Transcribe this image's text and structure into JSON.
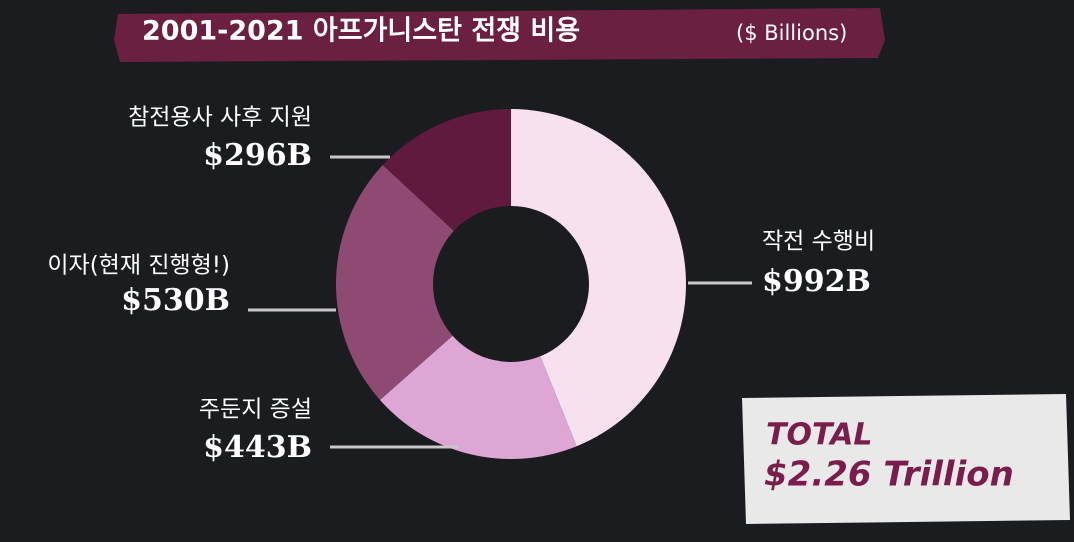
{
  "chart_data": {
    "type": "donut",
    "title": "2001-2021 아프가니스탄 전쟁 비용",
    "unit": "($ Billions)",
    "categories": [
      "작전 수행비",
      "주둔지 증설",
      "이자(현재 진행형!)",
      "참전용사 사후 지원"
    ],
    "values": [
      992,
      443,
      530,
      296
    ],
    "value_labels": [
      "$992B",
      "$443B",
      "$530B",
      "$296B"
    ],
    "colors": [
      "#f8e1ee",
      "#dda6d4",
      "#8f4a73",
      "#5f1a3d"
    ],
    "total_label": "TOTAL",
    "total_value": "$2.26 Trillion"
  }
}
